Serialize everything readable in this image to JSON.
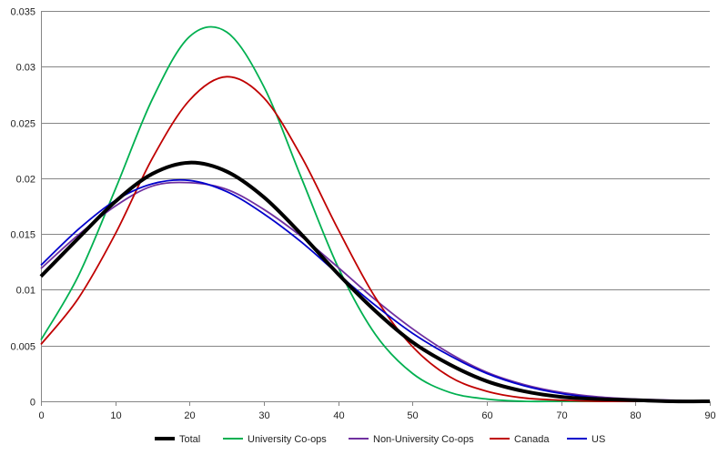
{
  "chart_data": {
    "type": "line",
    "title": "",
    "xlabel": "",
    "ylabel": "",
    "xlim": [
      0,
      90
    ],
    "ylim": [
      0,
      0.035
    ],
    "xticks": [
      "0",
      "10",
      "20",
      "30",
      "40",
      "50",
      "60",
      "70",
      "80",
      "90"
    ],
    "yticks": [
      "0",
      "0.005",
      "0.01",
      "0.015",
      "0.02",
      "0.025",
      "0.03",
      "0.035"
    ],
    "grid": "horizontal",
    "legend_position": "bottom",
    "x": [
      0,
      5,
      10,
      15,
      20,
      25,
      30,
      35,
      40,
      45,
      50,
      55,
      60,
      65,
      70,
      75,
      80,
      85,
      90
    ],
    "series": [
      {
        "name": "Total",
        "color": "#000000",
        "width": "bold",
        "values": [
          0.0112,
          0.0146,
          0.0179,
          0.0204,
          0.0214,
          0.0206,
          0.0183,
          0.015,
          0.0114,
          0.0081,
          0.0053,
          0.0033,
          0.0018,
          0.0009,
          0.0004,
          0.0002,
          0.0001,
          0.0,
          0.0
        ]
      },
      {
        "name": "University Co-ops",
        "color": "#00b050",
        "width": "normal",
        "values": [
          0.0055,
          0.0112,
          0.019,
          0.0271,
          0.0327,
          0.0331,
          0.0282,
          0.0201,
          0.012,
          0.006,
          0.0025,
          0.0008,
          0.0002,
          0.0,
          0.0,
          0.0,
          0.0,
          0.0,
          0.0
        ]
      },
      {
        "name": "Non-University Co-ops",
        "color": "#7030a0",
        "width": "normal",
        "values": [
          0.0119,
          0.0149,
          0.0175,
          0.0193,
          0.0196,
          0.019,
          0.0172,
          0.0148,
          0.012,
          0.0091,
          0.0065,
          0.0043,
          0.0026,
          0.0015,
          0.0008,
          0.0004,
          0.0002,
          0.0001,
          0.0
        ]
      },
      {
        "name": "Canada",
        "color": "#c00000",
        "width": "normal",
        "values": [
          0.0051,
          0.0092,
          0.015,
          0.0218,
          0.027,
          0.0291,
          0.0272,
          0.022,
          0.0154,
          0.0093,
          0.0049,
          0.0022,
          0.0009,
          0.0003,
          0.0001,
          0.0,
          0.0,
          0.0,
          0.0
        ]
      },
      {
        "name": "US",
        "color": "#0000cc",
        "width": "normal",
        "values": [
          0.0122,
          0.0154,
          0.018,
          0.0195,
          0.0198,
          0.0188,
          0.0168,
          0.0143,
          0.0114,
          0.0086,
          0.0061,
          0.0041,
          0.0025,
          0.0014,
          0.0007,
          0.0003,
          0.0001,
          0.0,
          0.0
        ]
      }
    ]
  }
}
